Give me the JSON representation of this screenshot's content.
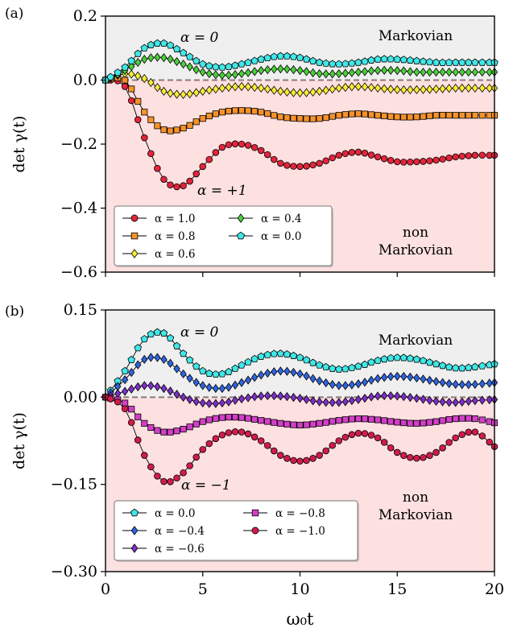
{
  "chart_data": [
    {
      "type": "line",
      "panel_label": "(a)",
      "ylabel": "det γ(t)",
      "xlim": [
        0,
        20
      ],
      "ylim": [
        -0.6,
        0.2
      ],
      "yticks": [
        "−0.6",
        "−0.4",
        "−0.2",
        "0.0",
        "0.2"
      ],
      "ytick_values": [
        -0.6,
        -0.4,
        -0.2,
        0.0,
        0.2
      ],
      "xticks": [
        0,
        5,
        10,
        15,
        20
      ],
      "grid": false,
      "legend_position": "lower-left",
      "legend_columns": 2,
      "regions": [
        {
          "label": "Markovian",
          "where": "y > 0",
          "color": "#efefef",
          "text_color": "#222222"
        },
        {
          "label_lines": [
            "non",
            "Markovian"
          ],
          "where": "y < 0",
          "color": "#fde0e0",
          "text_color": "#e8262a"
        }
      ],
      "annotations": [
        {
          "text": "α = 0",
          "x": 4.5,
          "y": 0.115
        },
        {
          "text": "α = +1",
          "x": 4.5,
          "y": -0.335
        }
      ],
      "reference_line": {
        "y": 0,
        "style": "dashed",
        "color": "#8a7a7a"
      },
      "series": [
        {
          "name": "α = 1.0",
          "marker": "circle",
          "color": "#e3243b",
          "x": [
            0,
            1,
            2,
            3,
            4,
            5,
            6,
            7,
            8,
            9,
            10,
            11,
            12,
            13,
            14,
            15,
            16,
            17,
            18,
            19,
            20
          ],
          "y": [
            0.0,
            -0.02,
            -0.18,
            -0.31,
            -0.33,
            -0.27,
            -0.21,
            -0.2,
            -0.22,
            -0.26,
            -0.27,
            -0.26,
            -0.235,
            -0.225,
            -0.24,
            -0.255,
            -0.255,
            -0.25,
            -0.24,
            -0.235,
            -0.235
          ]
        },
        {
          "name": "α = 0.8",
          "marker": "square",
          "color": "#f6922a",
          "x": [
            0,
            1,
            2,
            3,
            4,
            5,
            6,
            7,
            8,
            9,
            10,
            11,
            12,
            13,
            14,
            15,
            16,
            17,
            18,
            19,
            20
          ],
          "y": [
            0.0,
            0.0,
            -0.1,
            -0.155,
            -0.15,
            -0.12,
            -0.1,
            -0.095,
            -0.1,
            -0.115,
            -0.12,
            -0.12,
            -0.11,
            -0.105,
            -0.11,
            -0.115,
            -0.115,
            -0.11,
            -0.11,
            -0.11,
            -0.11
          ]
        },
        {
          "name": "α = 0.6",
          "marker": "diamond",
          "color": "#f9ee33",
          "x": [
            0,
            1,
            2,
            3,
            4,
            5,
            6,
            7,
            8,
            9,
            10,
            11,
            12,
            13,
            14,
            15,
            16,
            17,
            18,
            19,
            20
          ],
          "y": [
            0.0,
            0.02,
            0.005,
            -0.035,
            -0.045,
            -0.035,
            -0.025,
            -0.02,
            -0.025,
            -0.035,
            -0.04,
            -0.035,
            -0.025,
            -0.02,
            -0.025,
            -0.03,
            -0.03,
            -0.028,
            -0.025,
            -0.025,
            -0.025
          ]
        },
        {
          "name": "α = 0.4",
          "marker": "diamond",
          "color": "#4bcf3a",
          "x": [
            0,
            1,
            2,
            3,
            4,
            5,
            6,
            7,
            8,
            9,
            10,
            11,
            12,
            13,
            14,
            15,
            16,
            17,
            18,
            19,
            20
          ],
          "y": [
            0.0,
            0.03,
            0.065,
            0.07,
            0.05,
            0.025,
            0.015,
            0.02,
            0.03,
            0.035,
            0.03,
            0.02,
            0.02,
            0.025,
            0.03,
            0.03,
            0.025,
            0.025,
            0.025,
            0.025,
            0.025
          ]
        },
        {
          "name": "α = 0.0",
          "marker": "pentagon",
          "color": "#3fe8e8",
          "x": [
            0,
            1,
            2,
            3,
            4,
            5,
            6,
            7,
            8,
            9,
            10,
            11,
            12,
            13,
            14,
            15,
            16,
            17,
            18,
            19,
            20
          ],
          "y": [
            0.0,
            0.04,
            0.1,
            0.115,
            0.085,
            0.05,
            0.04,
            0.05,
            0.065,
            0.075,
            0.07,
            0.055,
            0.05,
            0.055,
            0.065,
            0.065,
            0.06,
            0.055,
            0.055,
            0.055,
            0.055
          ]
        }
      ]
    },
    {
      "type": "line",
      "panel_label": "(b)",
      "ylabel": "det γ(t)",
      "xlabel": "ω₀t",
      "xlim": [
        0,
        20
      ],
      "ylim": [
        -0.3,
        0.15
      ],
      "yticks": [
        "−0.30",
        "−0.15",
        "0.00",
        "0.15"
      ],
      "ytick_values": [
        -0.3,
        -0.15,
        0.0,
        0.15
      ],
      "xticks": [
        0,
        5,
        10,
        15,
        20
      ],
      "grid": false,
      "legend_position": "lower-left",
      "legend_columns": 2,
      "regions": [
        {
          "label": "Markovian",
          "where": "y > 0",
          "color": "#efefef",
          "text_color": "#222222"
        },
        {
          "label_lines": [
            "non",
            "Markovian"
          ],
          "where": "y < 0",
          "color": "#fde0e0",
          "text_color": "#e8262a"
        }
      ],
      "annotations": [
        {
          "text": "α = 0",
          "x": 4.5,
          "y": 0.125
        },
        {
          "text": "α = −1",
          "x": 4.5,
          "y": -0.145
        }
      ],
      "reference_line": {
        "y": 0,
        "style": "dashed",
        "color": "#8a7a7a"
      },
      "series": [
        {
          "name": "α = 0.0",
          "marker": "pentagon",
          "color": "#3fe8e8",
          "x": [
            0,
            1,
            2,
            3,
            4,
            5,
            6,
            7,
            8,
            9,
            10,
            11,
            12,
            13,
            14,
            15,
            16,
            17,
            18,
            19,
            20
          ],
          "y": [
            0.0,
            0.045,
            0.1,
            0.11,
            0.075,
            0.045,
            0.04,
            0.055,
            0.07,
            0.075,
            0.068,
            0.055,
            0.048,
            0.053,
            0.063,
            0.068,
            0.065,
            0.057,
            0.05,
            0.052,
            0.057
          ]
        },
        {
          "name": "α = −0.4",
          "marker": "diamond",
          "color": "#2e64e0",
          "x": [
            0,
            1,
            2,
            3,
            4,
            5,
            6,
            7,
            8,
            9,
            10,
            11,
            12,
            13,
            14,
            15,
            16,
            17,
            18,
            19,
            20
          ],
          "y": [
            0.0,
            0.03,
            0.065,
            0.065,
            0.04,
            0.02,
            0.015,
            0.025,
            0.038,
            0.045,
            0.04,
            0.028,
            0.02,
            0.023,
            0.032,
            0.036,
            0.033,
            0.027,
            0.022,
            0.022,
            0.025
          ]
        },
        {
          "name": "α = −0.6",
          "marker": "diamond",
          "color": "#7d2fc8",
          "x": [
            0,
            1,
            2,
            3,
            4,
            5,
            6,
            7,
            8,
            9,
            10,
            11,
            12,
            13,
            14,
            15,
            16,
            17,
            18,
            19,
            20
          ],
          "y": [
            0.0,
            0.01,
            0.02,
            0.015,
            0.0,
            -0.01,
            -0.01,
            -0.003,
            0.002,
            0.002,
            -0.002,
            -0.008,
            -0.009,
            -0.004,
            0.002,
            0.002,
            -0.002,
            -0.007,
            -0.009,
            -0.006,
            -0.004
          ]
        },
        {
          "name": "α = −0.8",
          "marker": "square",
          "color": "#d43fc9",
          "x": [
            0,
            1,
            2,
            3,
            4,
            5,
            6,
            7,
            8,
            9,
            10,
            11,
            12,
            13,
            14,
            15,
            16,
            17,
            18,
            19,
            20
          ],
          "y": [
            0.0,
            -0.01,
            -0.045,
            -0.06,
            -0.055,
            -0.042,
            -0.035,
            -0.035,
            -0.04,
            -0.045,
            -0.048,
            -0.045,
            -0.04,
            -0.037,
            -0.039,
            -0.043,
            -0.045,
            -0.042,
            -0.037,
            -0.037,
            -0.044
          ]
        },
        {
          "name": "α = −1.0",
          "marker": "circle",
          "color": "#d11c4a",
          "x": [
            0,
            1,
            2,
            3,
            4,
            5,
            6,
            7,
            8,
            9,
            10,
            11,
            12,
            13,
            14,
            15,
            16,
            17,
            18,
            19,
            20
          ],
          "y": [
            0.0,
            -0.02,
            -0.1,
            -0.145,
            -0.13,
            -0.09,
            -0.065,
            -0.06,
            -0.075,
            -0.1,
            -0.11,
            -0.1,
            -0.075,
            -0.062,
            -0.07,
            -0.095,
            -0.105,
            -0.095,
            -0.07,
            -0.06,
            -0.085
          ]
        }
      ]
    }
  ]
}
